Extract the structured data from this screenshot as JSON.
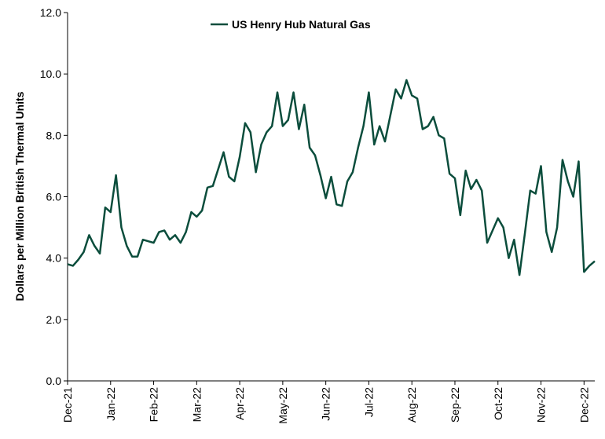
{
  "chart_data": {
    "type": "line",
    "ylabel": "Dollars per Million British Thermal Units",
    "categories": [
      "Dec-21",
      null,
      null,
      null,
      null,
      null,
      null,
      null,
      "Jan-22",
      null,
      null,
      null,
      null,
      null,
      null,
      null,
      "Feb-22",
      null,
      null,
      null,
      null,
      null,
      null,
      null,
      "Mar-22",
      null,
      null,
      null,
      null,
      null,
      null,
      null,
      "Apr-22",
      null,
      null,
      null,
      null,
      null,
      null,
      null,
      "May-22",
      null,
      null,
      null,
      null,
      null,
      null,
      null,
      "Jun-22",
      null,
      null,
      null,
      null,
      null,
      null,
      null,
      "Jul-22",
      null,
      null,
      null,
      null,
      null,
      null,
      null,
      "Aug-22",
      null,
      null,
      null,
      null,
      null,
      null,
      null,
      "Sep-22",
      null,
      null,
      null,
      null,
      null,
      null,
      null,
      "Oct-22",
      null,
      null,
      null,
      null,
      null,
      null,
      null,
      "Nov-22",
      null,
      null,
      null,
      null,
      null,
      null,
      null,
      "Dec-22",
      null,
      null
    ],
    "series": [
      {
        "name": "US Henry Hub Natural Gas",
        "color": "#0b4d3c",
        "values": [
          3.8,
          3.75,
          3.95,
          4.2,
          4.75,
          4.4,
          4.15,
          5.65,
          5.5,
          6.7,
          5.0,
          4.4,
          4.05,
          4.05,
          4.6,
          4.55,
          4.5,
          4.85,
          4.9,
          4.6,
          4.75,
          4.5,
          4.85,
          5.5,
          5.35,
          5.55,
          6.3,
          6.35,
          6.9,
          7.45,
          6.65,
          6.5,
          7.3,
          8.4,
          8.1,
          6.8,
          7.7,
          8.1,
          8.3,
          9.4,
          8.3,
          8.5,
          9.4,
          8.2,
          9.0,
          7.6,
          7.35,
          6.7,
          5.95,
          6.65,
          5.75,
          5.7,
          6.5,
          6.8,
          7.6,
          8.3,
          9.4,
          7.7,
          8.3,
          7.8,
          8.65,
          9.5,
          9.2,
          9.8,
          9.3,
          9.2,
          8.2,
          8.3,
          8.6,
          8.0,
          7.9,
          6.75,
          6.6,
          5.4,
          6.85,
          6.25,
          6.55,
          6.2,
          4.5,
          4.9,
          5.3,
          5.0,
          4.0,
          4.6,
          3.45,
          4.8,
          6.2,
          6.1,
          7.0,
          4.85,
          4.2,
          5.0,
          7.2,
          6.5,
          6.0,
          7.15,
          3.55,
          3.75,
          3.9
        ]
      }
    ],
    "ylim": [
      0,
      12
    ],
    "yticks": [
      {
        "value": 0,
        "label": "0.0"
      },
      {
        "value": 2,
        "label": "2.0"
      },
      {
        "value": 4,
        "label": "4.0"
      },
      {
        "value": 6,
        "label": "6.0"
      },
      {
        "value": 8,
        "label": "8.0"
      },
      {
        "value": 10,
        "label": "10.0"
      },
      {
        "value": 12,
        "label": "12.0"
      }
    ],
    "legend": "top"
  }
}
